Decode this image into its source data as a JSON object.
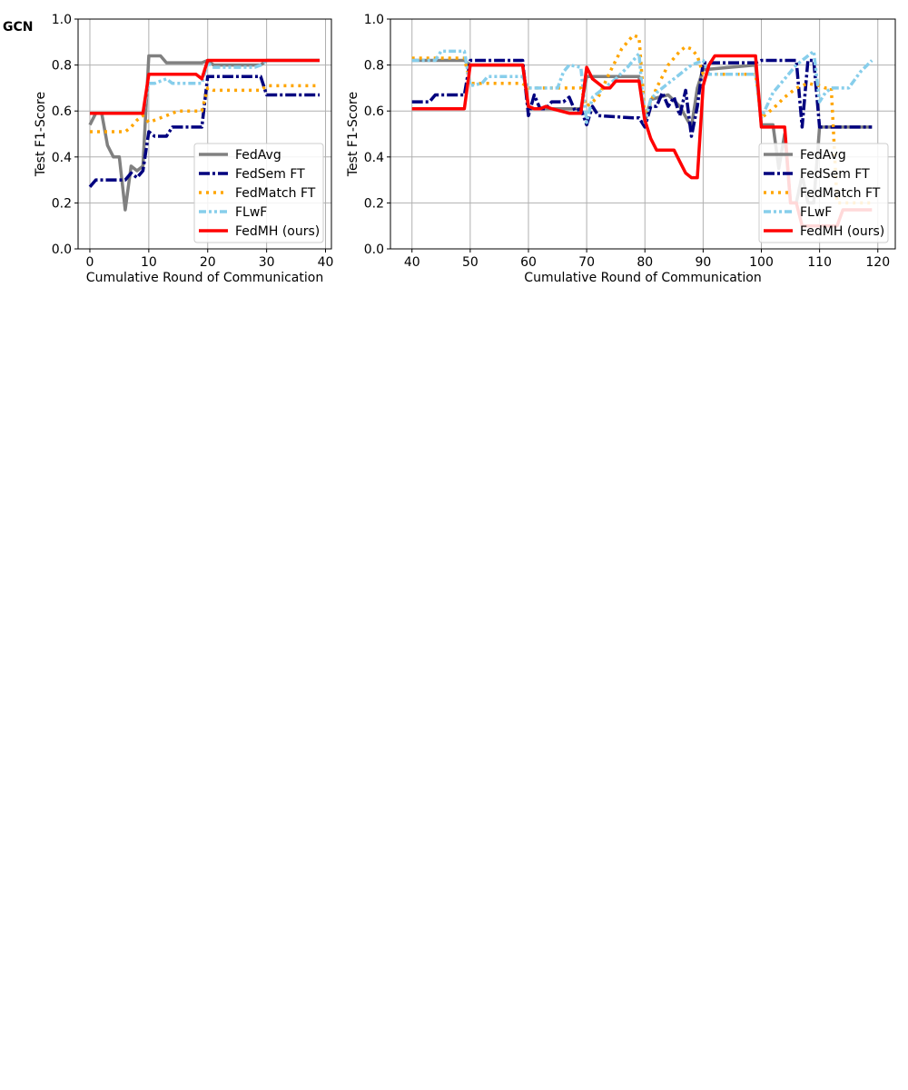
{
  "panel_label": "GCN",
  "colors": {
    "FedAvg": "#808080",
    "FedSem FT": "#00007f",
    "FedMatch FT": "#ffa500",
    "FLwF": "#87ceeb",
    "FedMH (ours)": "#ff0000"
  },
  "chart_data": [
    {
      "type": "line",
      "xlabel": "Cumulative Round of Communication",
      "ylabel": "Test F1-Score",
      "xlim": [
        -2,
        41
      ],
      "ylim": [
        0.0,
        1.0
      ],
      "xticks": [
        0,
        10,
        20,
        30,
        40
      ],
      "yticks": [
        0.0,
        0.2,
        0.4,
        0.6,
        0.8,
        1.0
      ],
      "grid": true,
      "legend": "lower right",
      "series": [
        {
          "name": "FedAvg",
          "x": [
            0,
            1,
            2,
            3,
            4,
            5,
            6,
            7,
            8,
            9,
            10,
            11,
            12,
            13,
            14,
            15,
            16,
            17,
            18,
            19,
            20,
            21,
            22,
            23,
            24,
            25,
            26,
            27,
            28,
            29,
            30,
            31,
            32,
            33,
            34,
            35,
            36,
            37,
            38,
            39
          ],
          "y": [
            0.54,
            0.59,
            0.59,
            0.45,
            0.4,
            0.4,
            0.17,
            0.36,
            0.34,
            0.36,
            0.84,
            0.84,
            0.84,
            0.81,
            0.81,
            0.81,
            0.81,
            0.81,
            0.81,
            0.81,
            0.82,
            0.8,
            0.8,
            0.8,
            0.8,
            0.8,
            0.8,
            0.8,
            0.8,
            0.8,
            0.82,
            0.82,
            0.82,
            0.82,
            0.82,
            0.82,
            0.82,
            0.82,
            0.82,
            0.82
          ]
        },
        {
          "name": "FedSem FT",
          "x": [
            0,
            1,
            2,
            3,
            4,
            5,
            6,
            7,
            8,
            9,
            10,
            11,
            12,
            13,
            14,
            15,
            16,
            17,
            18,
            19,
            20,
            21,
            22,
            23,
            24,
            25,
            26,
            27,
            28,
            29,
            30,
            31,
            32,
            33,
            34,
            35,
            36,
            37,
            38,
            39
          ],
          "y": [
            0.27,
            0.3,
            0.3,
            0.3,
            0.3,
            0.3,
            0.3,
            0.33,
            0.31,
            0.34,
            0.51,
            0.49,
            0.49,
            0.49,
            0.53,
            0.53,
            0.53,
            0.53,
            0.53,
            0.53,
            0.75,
            0.75,
            0.75,
            0.75,
            0.75,
            0.75,
            0.75,
            0.75,
            0.75,
            0.75,
            0.67,
            0.67,
            0.67,
            0.67,
            0.67,
            0.67,
            0.67,
            0.67,
            0.67,
            0.67
          ]
        },
        {
          "name": "FedMatch FT",
          "x": [
            0,
            1,
            2,
            3,
            4,
            5,
            6,
            7,
            8,
            9,
            10,
            11,
            12,
            13,
            14,
            15,
            16,
            17,
            18,
            19,
            20,
            21,
            22,
            23,
            24,
            25,
            26,
            27,
            28,
            29,
            30,
            31,
            32,
            33,
            34,
            35,
            36,
            37,
            38,
            39
          ],
          "y": [
            0.51,
            0.51,
            0.51,
            0.51,
            0.51,
            0.51,
            0.51,
            0.53,
            0.56,
            0.58,
            0.55,
            0.56,
            0.57,
            0.58,
            0.59,
            0.6,
            0.6,
            0.6,
            0.6,
            0.6,
            0.7,
            0.69,
            0.69,
            0.69,
            0.69,
            0.69,
            0.69,
            0.69,
            0.69,
            0.69,
            0.71,
            0.71,
            0.71,
            0.71,
            0.71,
            0.71,
            0.71,
            0.71,
            0.71,
            0.71
          ]
        },
        {
          "name": "FLwF",
          "x": [
            0,
            1,
            2,
            3,
            4,
            5,
            6,
            7,
            8,
            9,
            10,
            11,
            12,
            13,
            14,
            15,
            16,
            17,
            18,
            19,
            20,
            21,
            22,
            23,
            24,
            25,
            26,
            27,
            28,
            29,
            30,
            31,
            32,
            33,
            34,
            35,
            36,
            37,
            38,
            39
          ],
          "y": [
            0.59,
            0.59,
            0.59,
            0.59,
            0.59,
            0.59,
            0.59,
            0.59,
            0.59,
            0.59,
            0.72,
            0.72,
            0.73,
            0.74,
            0.72,
            0.72,
            0.72,
            0.72,
            0.72,
            0.72,
            0.81,
            0.79,
            0.79,
            0.79,
            0.79,
            0.79,
            0.79,
            0.79,
            0.79,
            0.8,
            0.82,
            0.82,
            0.82,
            0.82,
            0.82,
            0.82,
            0.82,
            0.82,
            0.82,
            0.82
          ]
        },
        {
          "name": "FedMH (ours)",
          "x": [
            0,
            1,
            2,
            3,
            4,
            5,
            6,
            7,
            8,
            9,
            10,
            11,
            12,
            13,
            14,
            15,
            16,
            17,
            18,
            19,
            20,
            21,
            22,
            23,
            24,
            25,
            26,
            27,
            28,
            29,
            30,
            31,
            32,
            33,
            34,
            35,
            36,
            37,
            38,
            39
          ],
          "y": [
            0.59,
            0.59,
            0.59,
            0.59,
            0.59,
            0.59,
            0.59,
            0.59,
            0.59,
            0.59,
            0.76,
            0.76,
            0.76,
            0.76,
            0.76,
            0.76,
            0.76,
            0.76,
            0.76,
            0.74,
            0.82,
            0.82,
            0.82,
            0.82,
            0.82,
            0.82,
            0.82,
            0.82,
            0.82,
            0.82,
            0.82,
            0.82,
            0.82,
            0.82,
            0.82,
            0.82,
            0.82,
            0.82,
            0.82,
            0.82
          ]
        }
      ]
    },
    {
      "type": "line",
      "xlabel": "Cumulative Round of Communication",
      "ylabel": "Test F1-Score",
      "xlim": [
        36.3,
        123
      ],
      "ylim": [
        0.0,
        1.0
      ],
      "xticks": [
        40,
        50,
        60,
        70,
        80,
        90,
        100,
        110,
        120
      ],
      "yticks": [
        0.0,
        0.2,
        0.4,
        0.6,
        0.8,
        1.0
      ],
      "grid": true,
      "legend": "lower right",
      "series": [
        {
          "name": "FedAvg",
          "x": [
            40,
            49,
            50,
            59,
            60,
            69,
            70,
            71,
            79,
            80,
            81,
            84,
            86,
            88,
            89,
            90,
            99,
            100,
            102,
            103,
            104,
            105,
            106,
            107,
            108,
            109,
            110,
            119
          ],
          "y": [
            0.82,
            0.82,
            0.8,
            0.8,
            0.61,
            0.61,
            0.75,
            0.75,
            0.75,
            0.55,
            0.65,
            0.67,
            0.62,
            0.53,
            0.7,
            0.78,
            0.8,
            0.54,
            0.54,
            0.35,
            0.5,
            0.2,
            0.2,
            0.32,
            0.2,
            0.2,
            0.53,
            0.53
          ]
        },
        {
          "name": "FedSem FT",
          "x": [
            40,
            43,
            44,
            49,
            50,
            59,
            60,
            61,
            62,
            63,
            64,
            66,
            67,
            68,
            69,
            70,
            71,
            72,
            78,
            79,
            80,
            81,
            82,
            83,
            84,
            85,
            86,
            87,
            88,
            89,
            90,
            91,
            99,
            100,
            106,
            107,
            108,
            109,
            110,
            119
          ],
          "y": [
            0.64,
            0.64,
            0.67,
            0.67,
            0.82,
            0.82,
            0.58,
            0.67,
            0.61,
            0.61,
            0.64,
            0.64,
            0.66,
            0.6,
            0.61,
            0.54,
            0.62,
            0.58,
            0.57,
            0.57,
            0.53,
            0.62,
            0.62,
            0.68,
            0.62,
            0.66,
            0.58,
            0.69,
            0.49,
            0.62,
            0.81,
            0.81,
            0.81,
            0.82,
            0.82,
            0.53,
            0.82,
            0.82,
            0.53,
            0.53
          ]
        },
        {
          "name": "FedMatch FT",
          "x": [
            40,
            49,
            50,
            59,
            60,
            69,
            70,
            72,
            74,
            76,
            78,
            79,
            80,
            82,
            84,
            86,
            87,
            88,
            89,
            90,
            99,
            100,
            102,
            104,
            106,
            108,
            110,
            111,
            112,
            113,
            114,
            119
          ],
          "y": [
            0.83,
            0.83,
            0.72,
            0.72,
            0.7,
            0.7,
            0.62,
            0.66,
            0.77,
            0.87,
            0.93,
            0.92,
            0.58,
            0.7,
            0.8,
            0.86,
            0.88,
            0.87,
            0.84,
            0.76,
            0.76,
            0.57,
            0.61,
            0.66,
            0.7,
            0.72,
            0.71,
            0.7,
            0.7,
            0.2,
            0.2,
            0.2
          ]
        },
        {
          "name": "FLwF",
          "x": [
            40,
            44,
            45,
            49,
            50,
            52,
            53,
            59,
            60,
            65,
            66,
            67,
            69,
            70,
            71,
            72,
            73,
            75,
            77,
            79,
            80,
            81,
            82,
            84,
            86,
            88,
            90,
            91,
            99,
            100,
            102,
            104,
            106,
            108,
            109,
            110,
            111,
            112,
            115,
            117,
            119
          ],
          "y": [
            0.82,
            0.82,
            0.86,
            0.86,
            0.71,
            0.72,
            0.75,
            0.75,
            0.7,
            0.7,
            0.77,
            0.8,
            0.79,
            0.55,
            0.66,
            0.68,
            0.7,
            0.74,
            0.79,
            0.85,
            0.55,
            0.65,
            0.68,
            0.72,
            0.76,
            0.8,
            0.82,
            0.76,
            0.76,
            0.57,
            0.68,
            0.74,
            0.8,
            0.84,
            0.86,
            0.64,
            0.68,
            0.7,
            0.7,
            0.77,
            0.82
          ]
        },
        {
          "name": "FedMH (ours)",
          "x": [
            40,
            49,
            50,
            59,
            60,
            61,
            62,
            63,
            64,
            67,
            68,
            69,
            70,
            71,
            72,
            73,
            74,
            75,
            76,
            77,
            78,
            79,
            80,
            81,
            82,
            83,
            84,
            85,
            86,
            87,
            88,
            89,
            90,
            91,
            92,
            99,
            100,
            101,
            102,
            103,
            104,
            105,
            106,
            107,
            108,
            109,
            110,
            111,
            112,
            113,
            114,
            116,
            118,
            119
          ],
          "y": [
            0.61,
            0.61,
            0.8,
            0.8,
            0.62,
            0.61,
            0.61,
            0.62,
            0.61,
            0.59,
            0.59,
            0.59,
            0.79,
            0.74,
            0.72,
            0.7,
            0.7,
            0.73,
            0.73,
            0.73,
            0.73,
            0.73,
            0.56,
            0.48,
            0.43,
            0.43,
            0.43,
            0.43,
            0.38,
            0.33,
            0.31,
            0.31,
            0.71,
            0.8,
            0.84,
            0.84,
            0.53,
            0.53,
            0.53,
            0.53,
            0.53,
            0.2,
            0.2,
            0.1,
            0.1,
            0.1,
            0.1,
            0.1,
            0.1,
            0.1,
            0.17,
            0.17,
            0.17,
            0.17
          ]
        }
      ]
    }
  ]
}
